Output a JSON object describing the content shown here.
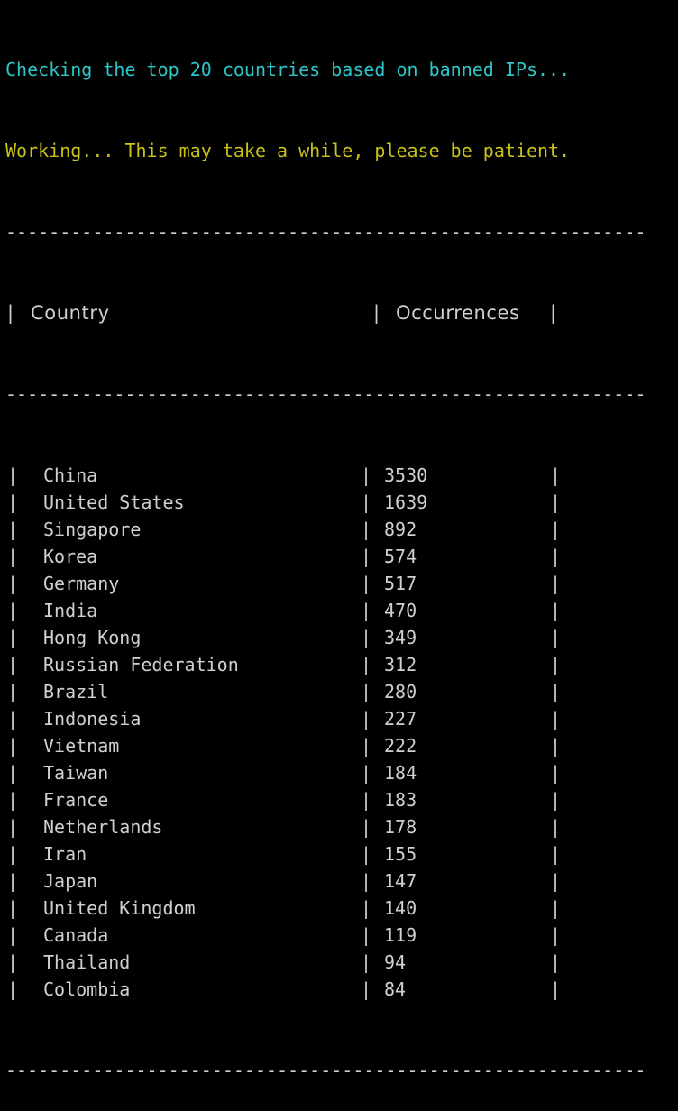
{
  "status": {
    "checking_message": "Checking the top 20 countries based on banned IPs...",
    "working_message": "Working... This may take a while, please be patient."
  },
  "table": {
    "separator": "-----------------------------------------------------------",
    "border_char": "|",
    "headers": {
      "country": "Country",
      "occurrences": "Occurrences"
    },
    "rows": [
      {
        "country": "China",
        "occurrences": "3530"
      },
      {
        "country": "United States",
        "occurrences": "1639"
      },
      {
        "country": "Singapore",
        "occurrences": "892"
      },
      {
        "country": "Korea",
        "occurrences": "574"
      },
      {
        "country": "Germany",
        "occurrences": "517"
      },
      {
        "country": "India",
        "occurrences": "470"
      },
      {
        "country": "Hong Kong",
        "occurrences": "349"
      },
      {
        "country": "Russian Federation",
        "occurrences": "312"
      },
      {
        "country": "Brazil",
        "occurrences": "280"
      },
      {
        "country": "Indonesia",
        "occurrences": "227"
      },
      {
        "country": "Vietnam",
        "occurrences": "222"
      },
      {
        "country": "Taiwan",
        "occurrences": "184"
      },
      {
        "country": "France",
        "occurrences": "183"
      },
      {
        "country": "Netherlands",
        "occurrences": "178"
      },
      {
        "country": "Iran",
        "occurrences": "155"
      },
      {
        "country": "Japan",
        "occurrences": "147"
      },
      {
        "country": "United Kingdom",
        "occurrences": "140"
      },
      {
        "country": "Canada",
        "occurrences": "119"
      },
      {
        "country": "Thailand",
        "occurrences": "94"
      },
      {
        "country": "Colombia",
        "occurrences": "84"
      }
    ]
  },
  "colors": {
    "background": "#000000",
    "text": "#d0d0d0",
    "cyan": "#2ec6c8",
    "yellow": "#c9c319"
  }
}
